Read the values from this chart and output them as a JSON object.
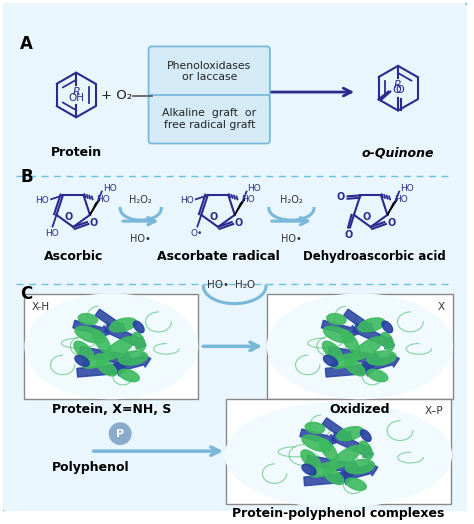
{
  "bg_color": "#eaf6fd",
  "border_color": "#6bbfdf",
  "fig_width": 4.74,
  "fig_height": 5.24,
  "dpi": 100,
  "label_A": "A",
  "label_B": "B",
  "label_C": "C",
  "mol_color": "#2a2a8e",
  "box_bg": "#d4ebf7",
  "box_border": "#7ab8d9",
  "arrow_color": "#7ab8d9",
  "text_color": "#111111",
  "section_A": {
    "protein_label": "Protein",
    "o2_label": "+ O₂",
    "box1_text": "Phenoloxidases\nor laccase",
    "box2_text": "Alkaline  graft  or\nfree radical graft",
    "quinone_label": "o-Quinone"
  },
  "section_B": {
    "ascorbic_label": "Ascorbic",
    "radical_label": "Ascorbate radical",
    "dehydro_label": "Dehydroascorbic acid",
    "h2o2_label": "H₂O₂",
    "ho_label": "HO•"
  },
  "section_C": {
    "protein_label": "Protein, X=NH, S",
    "xh_label": "X-H",
    "ho_label": "HO•",
    "h2o_label": "H₂O",
    "oxidized_label": "Oxidized",
    "x_label": "X",
    "polyphenol_label": "Polyphenol",
    "p_label": "P",
    "complex_label": "Protein-polyphenol complexes",
    "xp_label": "X–P"
  }
}
